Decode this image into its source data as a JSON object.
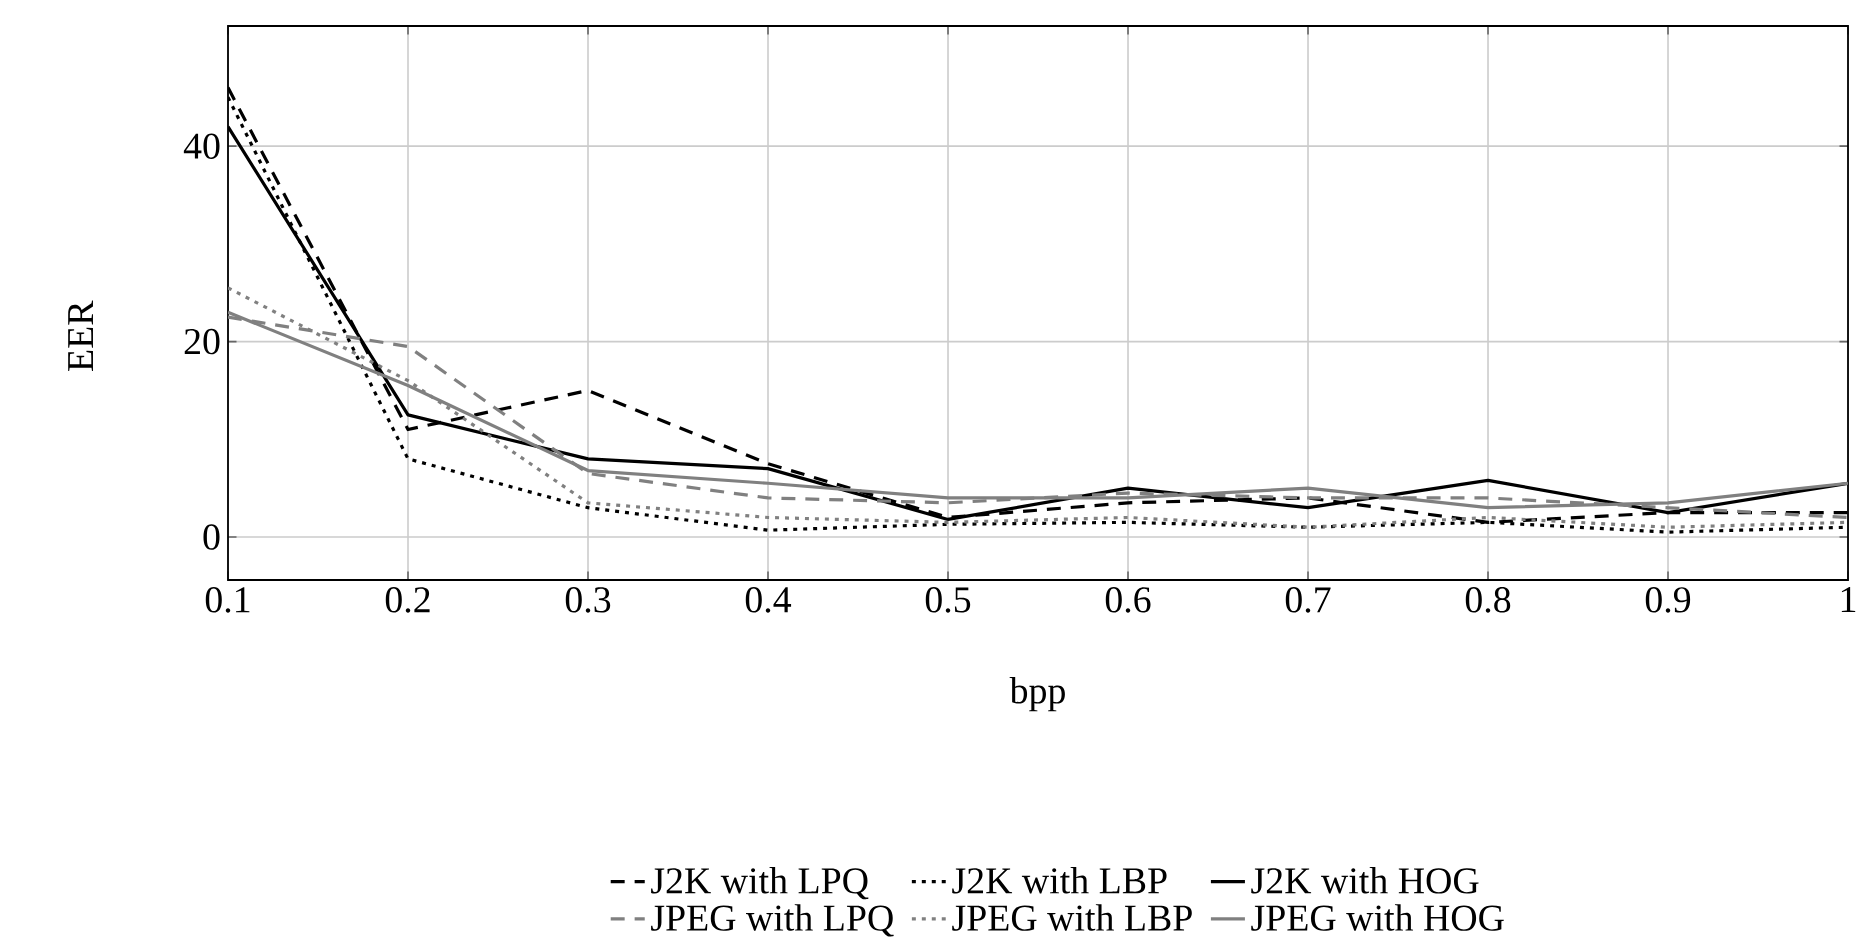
{
  "chart_data": {
    "type": "line",
    "xlabel": "bpp",
    "ylabel": "EER",
    "x": [
      0.1,
      0.2,
      0.3,
      0.4,
      0.5,
      0.6,
      0.7,
      0.8,
      0.9,
      1.0
    ],
    "xlim": [
      0.1,
      1.0
    ],
    "ylim": [
      -4.4,
      52.3
    ],
    "xticks": [
      0.1,
      0.2,
      0.3,
      0.4,
      0.5,
      0.6,
      0.7,
      0.8,
      0.9,
      1
    ],
    "yticks": [
      0,
      20,
      40
    ],
    "grid": true,
    "legend": "bottom",
    "marker": "none",
    "series": [
      {
        "name": "J2K with LPQ",
        "color": "#000000",
        "line_style": "dashed",
        "values": [
          46,
          11,
          15,
          7.5,
          2,
          3.5,
          4,
          1.5,
          2.5,
          2.5
        ]
      },
      {
        "name": "J2K with LBP",
        "color": "#000000",
        "line_style": "dotted",
        "values": [
          45,
          8,
          3,
          0.7,
          1.3,
          1.5,
          1,
          1.5,
          0.5,
          1
        ]
      },
      {
        "name": "J2K with HOG",
        "color": "#000000",
        "line_style": "solid",
        "values": [
          42,
          12.5,
          8,
          7,
          1.8,
          5,
          3,
          5.8,
          2.5,
          5.5
        ]
      },
      {
        "name": "JPEG with LPQ",
        "color": "#808080",
        "line_style": "dashed",
        "values": [
          22.5,
          19.5,
          6.5,
          4,
          3.5,
          4.5,
          4,
          4,
          3,
          2
        ]
      },
      {
        "name": "JPEG with LBP",
        "color": "#808080",
        "line_style": "dotted",
        "values": [
          25.5,
          16,
          3.5,
          2,
          1.5,
          2,
          1,
          2,
          1,
          1.5
        ]
      },
      {
        "name": "JPEG with HOG",
        "color": "#808080",
        "line_style": "solid",
        "values": [
          23,
          15.5,
          6.8,
          5.5,
          4,
          4,
          5,
          3,
          3.5,
          5.5
        ]
      }
    ]
  }
}
